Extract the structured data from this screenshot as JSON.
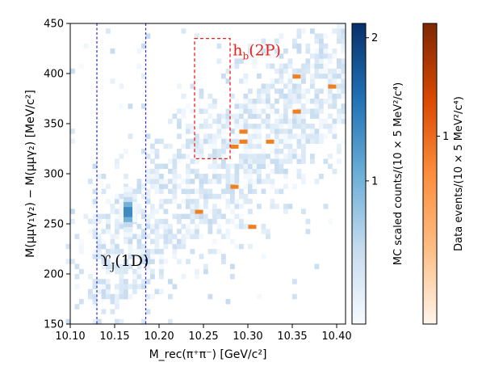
{
  "chart_data": {
    "type": "heatmap",
    "title": "",
    "xlabel": "M_rec(π⁺π⁻) [GeV/c²]",
    "ylabel": "M(μμγ₁γ₂) − M(μμγ₂) [MeV/c²]",
    "xlim": [
      10.1,
      10.41
    ],
    "ylim": [
      150,
      450
    ],
    "x_ticks": [
      "10.10",
      "10.15",
      "10.20",
      "10.25",
      "10.30",
      "10.35",
      "10.40"
    ],
    "y_ticks": [
      "150",
      "200",
      "250",
      "300",
      "350",
      "400",
      "450"
    ],
    "grid": false,
    "bin_width_x": 0.005,
    "bin_width_y": 5,
    "mc_colorbar": {
      "label": "MC scaled counts/(10 × 5 MeV²/c⁴)",
      "range": [
        0,
        2.1
      ],
      "ticks": [
        "1",
        "2"
      ],
      "colormap": [
        "#f7fbff",
        "#c6dbef",
        "#6baed6",
        "#2171b5",
        "#08306b"
      ]
    },
    "data_colorbar": {
      "label": "Data events/(10 × 5 MeV²/c⁴)",
      "range": [
        0,
        1.6
      ],
      "ticks": [
        "1"
      ],
      "colormap": [
        "#fff5eb",
        "#fdbe85",
        "#fd8d3c",
        "#d94801",
        "#7f2704"
      ]
    },
    "mc_cluster": {
      "x": 10.165,
      "y": 262,
      "peak": 2.0,
      "sigma_x": 0.003,
      "sigma_y": 9
    },
    "data_events": [
      {
        "x": 10.245,
        "y": 262
      },
      {
        "x": 10.285,
        "y": 287
      },
      {
        "x": 10.285,
        "y": 327
      },
      {
        "x": 10.295,
        "y": 332
      },
      {
        "x": 10.295,
        "y": 342
      },
      {
        "x": 10.305,
        "y": 247
      },
      {
        "x": 10.325,
        "y": 332
      },
      {
        "x": 10.355,
        "y": 362
      },
      {
        "x": 10.355,
        "y": 397
      },
      {
        "x": 10.395,
        "y": 387
      }
    ],
    "vertical_lines": [
      10.13,
      10.185
    ],
    "signal_box": {
      "x": [
        10.24,
        10.28
      ],
      "y": [
        315,
        435
      ]
    },
    "annotations": [
      {
        "text": "ϒJ(1D)",
        "base": "ϒ",
        "sub": "J",
        "tail": "(1D)",
        "x": 10.134,
        "y": 208,
        "color": "#000000"
      },
      {
        "text": "hb(2P)",
        "base": "h",
        "sub": "b",
        "tail": "(2P)",
        "x": 10.283,
        "y": 418,
        "color": "#e8201c"
      }
    ]
  }
}
